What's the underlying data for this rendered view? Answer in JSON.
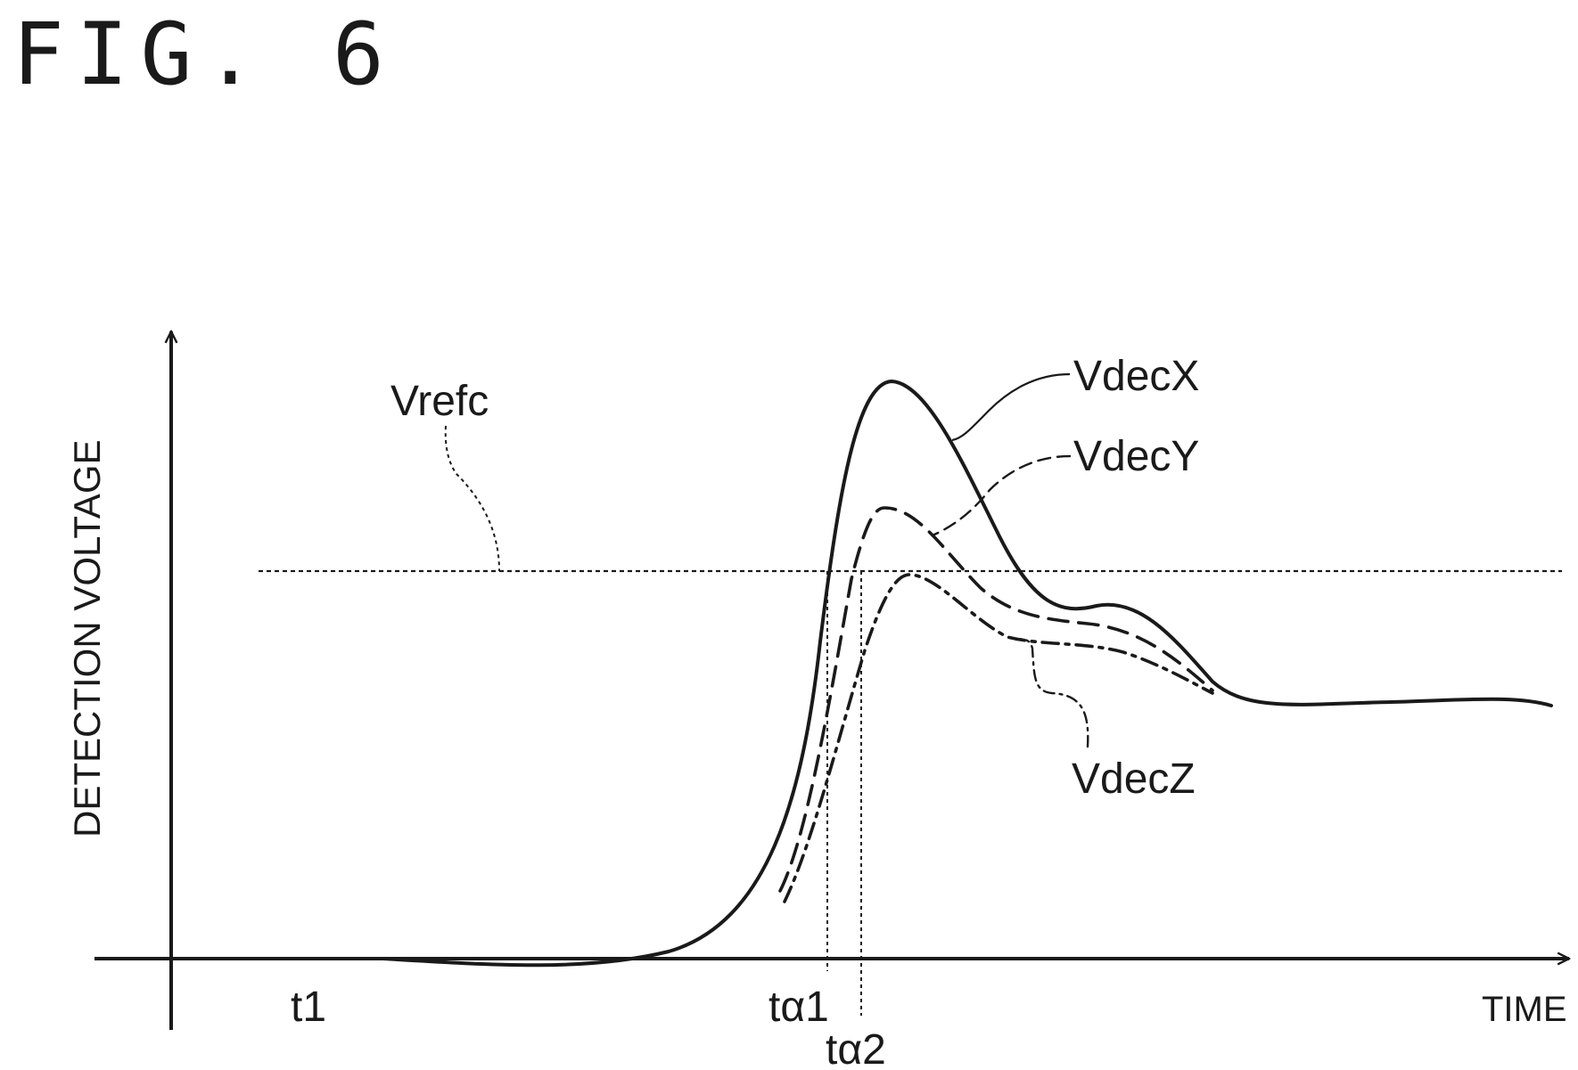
{
  "figure": {
    "title": "FIG. 6"
  },
  "axes": {
    "ylabel": "DETECTION VOLTAGE",
    "xlabel": "TIME"
  },
  "labels": {
    "vrefc": "Vrefc",
    "vdecx": "VdecX",
    "vdecy": "VdecY",
    "vdecz": "VdecZ",
    "t1": "t1",
    "ta1": "tα1",
    "ta2": "tα2"
  }
}
